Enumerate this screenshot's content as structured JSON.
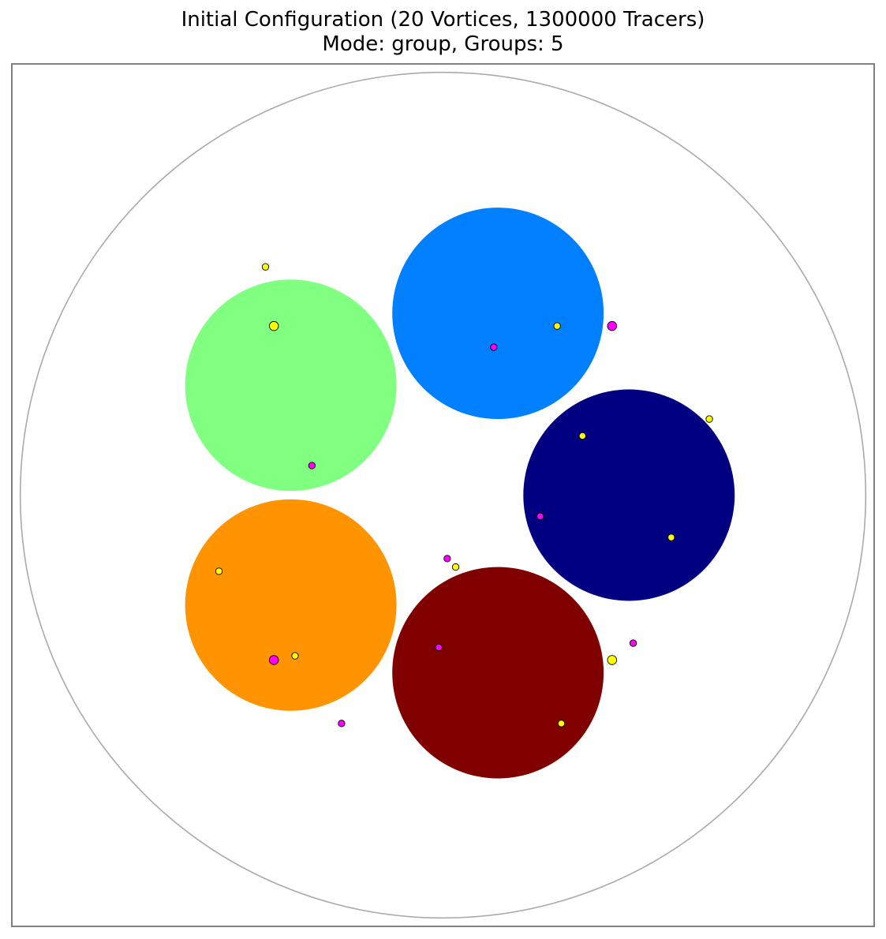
{
  "chart_data": {
    "type": "scatter",
    "title": "Initial Configuration (20 Vortices, 1300000 Tracers)",
    "subtitle": "Mode: group, Groups: 5",
    "xlabel": "",
    "ylabel": "",
    "xlim": [
      -1.02,
      1.02
    ],
    "ylim": [
      -1.02,
      1.02
    ],
    "grid": false,
    "axes_visible": false,
    "domain_boundary": {
      "center": [
        0,
        0
      ],
      "radius": 1.0,
      "color": "#aaaaaa"
    },
    "tracer_groups": [
      {
        "center": [
          0.13,
          0.43
        ],
        "radius": 0.25,
        "color": "#0080ff"
      },
      {
        "center": [
          -0.36,
          0.26
        ],
        "radius": 0.25,
        "color": "#80ff80"
      },
      {
        "center": [
          0.44,
          0.0
        ],
        "radius": 0.25,
        "color": "#000080"
      },
      {
        "center": [
          -0.36,
          -0.26
        ],
        "radius": 0.25,
        "color": "#ff9400"
      },
      {
        "center": [
          0.13,
          -0.42
        ],
        "radius": 0.25,
        "color": "#800000"
      }
    ],
    "vortices": [
      {
        "x": -0.42,
        "y": 0.54,
        "color": "#ffff00",
        "size": "small"
      },
      {
        "x": -0.4,
        "y": 0.4,
        "color": "#ffff00",
        "size": "large"
      },
      {
        "x": 0.27,
        "y": 0.4,
        "color": "#ffff00",
        "size": "small"
      },
      {
        "x": 0.4,
        "y": 0.4,
        "color": "#ff00ff",
        "size": "large"
      },
      {
        "x": 0.12,
        "y": 0.35,
        "color": "#ff00ff",
        "size": "small"
      },
      {
        "x": -0.31,
        "y": 0.07,
        "color": "#ff00ff",
        "size": "small"
      },
      {
        "x": 0.33,
        "y": 0.14,
        "color": "#ffff00",
        "size": "small"
      },
      {
        "x": 0.63,
        "y": 0.18,
        "color": "#ffff00",
        "size": "small"
      },
      {
        "x": 0.23,
        "y": -0.05,
        "color": "#ff00ff",
        "size": "small"
      },
      {
        "x": 0.54,
        "y": -0.1,
        "color": "#ffff00",
        "size": "small"
      },
      {
        "x": 0.01,
        "y": -0.15,
        "color": "#ff00ff",
        "size": "small"
      },
      {
        "x": 0.03,
        "y": -0.17,
        "color": "#ffff00",
        "size": "small"
      },
      {
        "x": -0.53,
        "y": -0.18,
        "color": "#ffff00",
        "size": "small"
      },
      {
        "x": -0.4,
        "y": -0.39,
        "color": "#ff00ff",
        "size": "large"
      },
      {
        "x": -0.35,
        "y": -0.38,
        "color": "#ffff00",
        "size": "small"
      },
      {
        "x": -0.24,
        "y": -0.54,
        "color": "#ff00ff",
        "size": "small"
      },
      {
        "x": -0.01,
        "y": -0.36,
        "color": "#ff00ff",
        "size": "small"
      },
      {
        "x": 0.4,
        "y": -0.39,
        "color": "#ffff00",
        "size": "large"
      },
      {
        "x": 0.45,
        "y": -0.35,
        "color": "#ff00ff",
        "size": "small"
      },
      {
        "x": 0.28,
        "y": -0.54,
        "color": "#ffff00",
        "size": "small"
      }
    ]
  }
}
